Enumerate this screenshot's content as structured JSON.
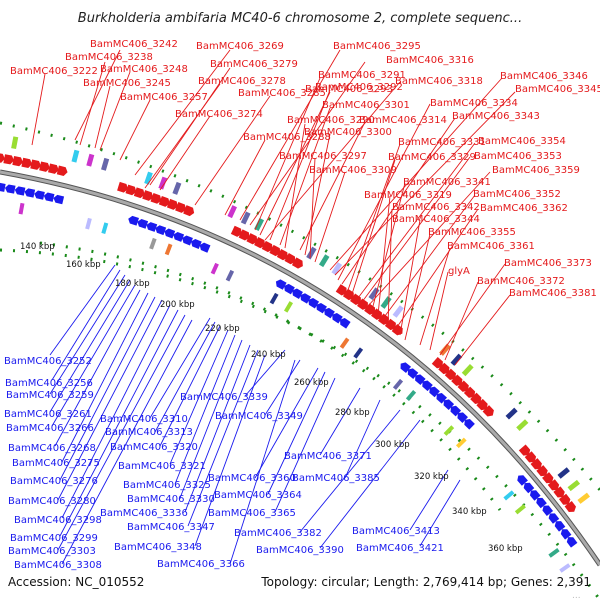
{
  "title": "Burkholderia ambifaria MC40-6 chromosome 2, complete sequenc...",
  "footer": {
    "accession": "Accession: NC_010552",
    "topology": "Topology: circular; Length: 2,769,414 bp; Genes: 2,391",
    "tiny_mark": "..."
  },
  "colors": {
    "forward": "#e41a1c",
    "reverse": "#1a1aee",
    "backbone": "#888888",
    "dotted": "#1a8a1a"
  },
  "ticks": [
    "140 kbp",
    "160 kbp",
    "180 kbp",
    "200 kbp",
    "220 kbp",
    "240 kbp",
    "260 kbp",
    "280 kbp",
    "300 kbp",
    "320 kbp",
    "340 kbp",
    "360 kbp"
  ],
  "forward_labels": [
    "BamMC406_3242",
    "BamMC406_3238",
    "BamMC406_3222",
    "BamMC406_3248",
    "BamMC406_3245",
    "BamMC406_3257",
    "BamMC406_3269",
    "BamMC406_3279",
    "BamMC406_3278",
    "BamMC406_3274",
    "BamMC406_3285",
    "BamMC406_3288",
    "BamMC406_3295",
    "BamMC406_3316",
    "BamMC406_3291",
    "BamMC406_3292",
    "BamMC406_3318",
    "BamMC406_3293",
    "BamMC406_3301",
    "BamMC406_3290",
    "BamMC406_3314",
    "BamMC406_3300",
    "BamMC406_3297",
    "BamMC406_3309",
    "BamMC406_3346",
    "BamMC406_3345",
    "BamMC406_3334",
    "BamMC406_3343",
    "BamMC406_3331",
    "BamMC406_3329",
    "BamMC406_3354",
    "BamMC406_3353",
    "BamMC406_3359",
    "BamMC406_3341",
    "BamMC406_3319",
    "BamMC406_3352",
    "BamMC406_3342",
    "BamMC406_3362",
    "BamMC406_3344",
    "BamMC406_3355",
    "BamMC406_3361",
    "glyA",
    "BamMC406_3373",
    "BamMC406_3372",
    "BamMC406_3381"
  ],
  "reverse_labels": [
    "BamMC406_3252",
    "BamMC406_3256",
    "BamMC406_3259",
    "BamMC406_3261",
    "BamMC406_3266",
    "BamMC406_3268",
    "BamMC406_3275",
    "BamMC406_3276",
    "BamMC406_3280",
    "BamMC406_3298",
    "BamMC406_3299",
    "BamMC406_3303",
    "BamMC406_3308",
    "BamMC406_3310",
    "BamMC406_3313",
    "BamMC406_3320",
    "BamMC406_3321",
    "BamMC406_3325",
    "BamMC406_3330",
    "BamMC406_3336",
    "BamMC406_3347",
    "BamMC406_3348",
    "BamMC406_3366",
    "BamMC406_3339",
    "BamMC406_3349",
    "BamMC406_3360",
    "BamMC406_3364",
    "BamMC406_3365",
    "BamMC406_3371",
    "BamMC406_3385",
    "BamMC406_3382",
    "BamMC406_3390",
    "BamMC406_3413",
    "BamMC406_3421"
  ]
}
